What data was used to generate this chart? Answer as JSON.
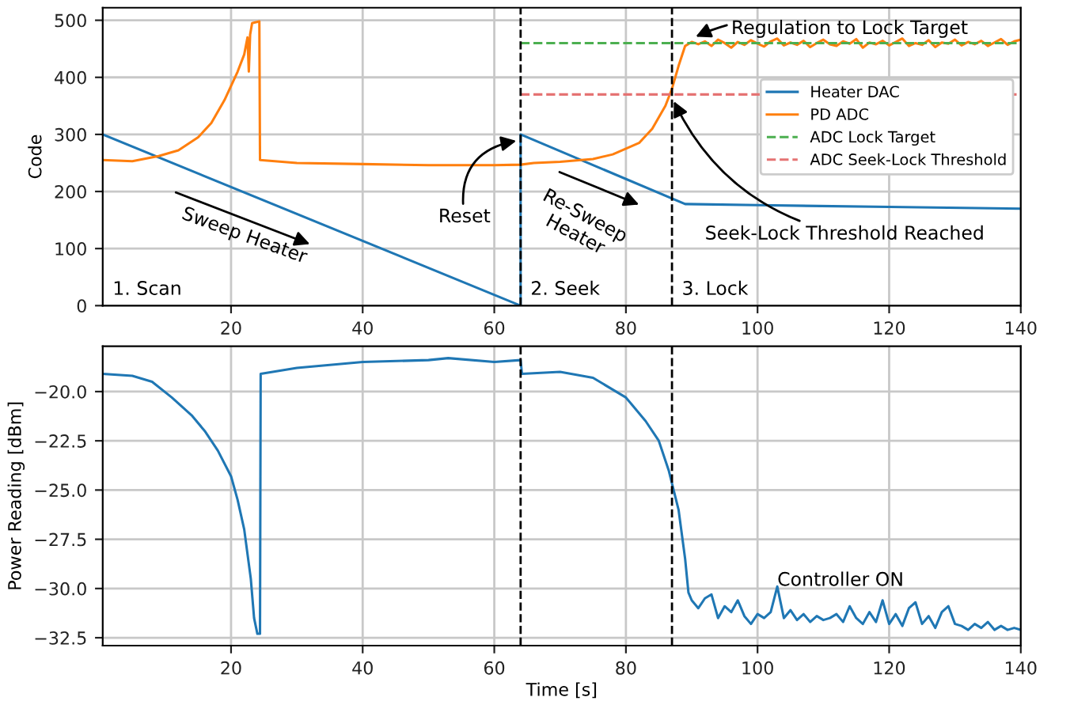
{
  "chart_data": [
    {
      "type": "line",
      "ylabel": "Code",
      "xlim": [
        0.5,
        140
      ],
      "ylim": [
        0,
        522
      ],
      "xticks": [
        20,
        40,
        60,
        80,
        100,
        120,
        140
      ],
      "yticks": [
        0,
        100,
        200,
        300,
        400,
        500
      ],
      "grid": true,
      "legend": "right",
      "line_style": "solid",
      "marker": "none",
      "series": [
        {
          "name": "Heater DAC",
          "color": "#1f77b4",
          "x": [
            0.5,
            64,
            64,
            89,
            100,
            120,
            140
          ],
          "values": [
            300,
            0,
            300,
            178,
            176,
            173,
            170
          ]
        },
        {
          "name": "PD ADC",
          "color": "#ff7f0e",
          "x": [
            0.5,
            5,
            9,
            12,
            15,
            17,
            19,
            20,
            21,
            22,
            22.5,
            22.7,
            22.9,
            23.2,
            24.3,
            24.4,
            30,
            40,
            50,
            60,
            64,
            66,
            70,
            75,
            78,
            82,
            84,
            86,
            87,
            88,
            89,
            90,
            91,
            92,
            93,
            94,
            95,
            96,
            97,
            98,
            99,
            100,
            101,
            102,
            103,
            104,
            105,
            106,
            107,
            108,
            109,
            110,
            111,
            112,
            113,
            114,
            115,
            116,
            117,
            118,
            119,
            120,
            121,
            122,
            123,
            124,
            125,
            126,
            127,
            128,
            129,
            130,
            131,
            132,
            133,
            134,
            135,
            136,
            137,
            138,
            139,
            140
          ],
          "values": [
            255,
            253,
            262,
            272,
            295,
            320,
            360,
            385,
            410,
            440,
            470,
            410,
            475,
            495,
            498,
            255,
            250,
            248,
            246,
            246,
            247,
            250,
            252,
            257,
            265,
            285,
            310,
            350,
            380,
            420,
            455,
            462,
            458,
            463,
            455,
            466,
            460,
            452,
            462,
            457,
            465,
            459,
            454,
            463,
            468,
            456,
            461,
            457,
            464,
            453,
            460,
            466,
            458,
            455,
            463,
            459,
            467,
            452,
            461,
            458,
            464,
            456,
            462,
            468,
            455,
            460,
            457,
            465,
            453,
            461,
            459,
            466,
            456,
            462,
            458,
            464,
            455,
            461,
            467,
            457,
            463,
            466
          ]
        },
        {
          "name": "ADC Lock Target",
          "color": "#4caf50",
          "line_style": "dashed",
          "x": [
            64,
            140
          ],
          "values": [
            460,
            460
          ]
        },
        {
          "name": "ADC Seek-Lock Threshold",
          "color": "#e57373",
          "line_style": "dashed",
          "x": [
            64,
            140
          ],
          "values": [
            370,
            370
          ]
        }
      ],
      "ref_lines": [
        {
          "axis": "x",
          "value": 64,
          "color": "#000000",
          "line_style": "dashed"
        },
        {
          "axis": "x",
          "value": 87,
          "color": "#000000",
          "line_style": "dashed"
        }
      ],
      "annotations": [
        "1. Scan",
        "Sweep Heater",
        {
          "text": "Reset",
          "x": 64,
          "y": 290
        },
        "Re-Sweep\nHeater",
        "2. Seek",
        "3. Lock",
        {
          "text": "Seek-Lock Threshold Reached",
          "x": 87,
          "y": 365
        },
        {
          "text": "Regulation to Lock Target",
          "x": 90,
          "y": 468
        }
      ]
    },
    {
      "type": "line",
      "xlabel": "Time [s]",
      "ylabel": "Power Reading [dBm]",
      "xlim": [
        0.5,
        140
      ],
      "ylim": [
        -32.9,
        -17.7
      ],
      "xticks": [
        20,
        40,
        60,
        80,
        100,
        120,
        140
      ],
      "yticks": [
        {
          "value": -20,
          "label": "−20.0"
        },
        {
          "value": -22.5,
          "label": "−22.5"
        },
        {
          "value": -25,
          "label": "−25.0"
        },
        {
          "value": -27.5,
          "label": "−27.5"
        },
        {
          "value": -30,
          "label": "−30.0"
        },
        {
          "value": -32.5,
          "label": "−32.5"
        }
      ],
      "grid": true,
      "legend": false,
      "line_style": "solid",
      "marker": "none",
      "series": [
        {
          "color": "#1f77b4",
          "x": [
            0.5,
            5,
            8,
            11,
            14,
            16,
            18,
            20,
            21,
            22,
            23,
            23.5,
            24,
            24.4,
            24.5,
            30,
            40,
            50,
            53,
            60,
            64,
            64.2,
            70,
            75,
            80,
            83,
            85,
            86.5,
            88,
            89,
            89.5,
            90,
            91,
            92,
            93,
            94,
            95,
            96,
            97,
            98,
            99,
            100,
            101,
            102,
            103,
            104,
            105,
            106,
            107,
            108,
            109,
            110,
            111,
            112,
            113,
            114,
            115,
            116,
            117,
            118,
            119,
            120,
            121,
            122,
            123,
            124,
            125,
            126,
            127,
            128,
            129,
            130,
            131,
            132,
            133,
            134,
            135,
            136,
            137,
            138,
            139,
            140
          ],
          "values": [
            -19.1,
            -19.2,
            -19.5,
            -20.3,
            -21.2,
            -22,
            -23,
            -24.3,
            -25.5,
            -27,
            -29.5,
            -31.5,
            -32.3,
            -32.3,
            -19.1,
            -18.8,
            -18.5,
            -18.4,
            -18.3,
            -18.5,
            -18.4,
            -19.1,
            -19,
            -19.3,
            -20.3,
            -21.5,
            -22.5,
            -24,
            -26,
            -28.5,
            -30.2,
            -30.6,
            -31.0,
            -30.5,
            -30.3,
            -31.5,
            -30.9,
            -31.2,
            -30.6,
            -31.4,
            -31.8,
            -31.3,
            -31.5,
            -31.2,
            -29.9,
            -31.5,
            -31.1,
            -31.6,
            -31.3,
            -31.7,
            -31.4,
            -31.6,
            -31.5,
            -31.3,
            -31.7,
            -30.9,
            -31.5,
            -31.8,
            -31.2,
            -31.7,
            -30.6,
            -31.8,
            -31.3,
            -31.9,
            -31.0,
            -30.7,
            -31.8,
            -31.4,
            -32.0,
            -31.2,
            -30.9,
            -31.8,
            -31.9,
            -32.1,
            -31.8,
            -32.0,
            -31.7,
            -32.1,
            -31.9,
            -32.1,
            -32.0,
            -32.1
          ]
        }
      ],
      "ref_lines": [
        {
          "axis": "x",
          "value": 64,
          "color": "#000000",
          "line_style": "dashed"
        },
        {
          "axis": "x",
          "value": 87,
          "color": "#000000",
          "line_style": "dashed"
        }
      ],
      "annotations": [
        "Controller ON"
      ]
    }
  ]
}
